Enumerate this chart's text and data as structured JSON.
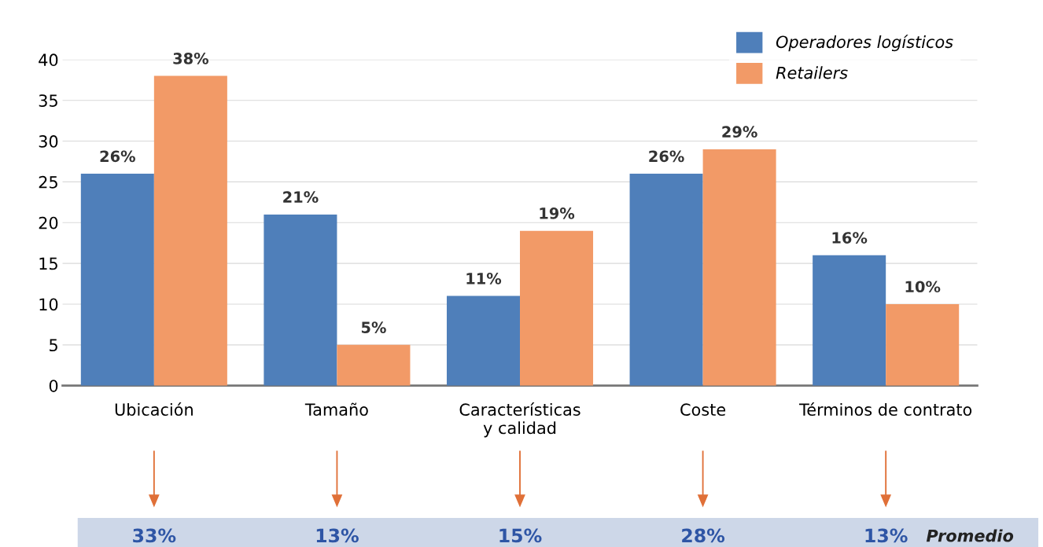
{
  "chart_data": {
    "type": "bar",
    "categories": [
      "Ubicación",
      "Tamaño",
      "Características\ny calidad",
      "Coste",
      "Términos de contrato"
    ],
    "series": [
      {
        "name": "Operadores logísticos",
        "color": "#4f7fba",
        "values": [
          26,
          21,
          11,
          26,
          16
        ],
        "value_labels": [
          "26%",
          "21%",
          "11%",
          "26%",
          "16%"
        ]
      },
      {
        "name": "Retailers",
        "color": "#f29a67",
        "values": [
          38,
          5,
          19,
          29,
          10
        ],
        "value_labels": [
          "38%",
          "5%",
          "19%",
          "29%",
          "10%"
        ]
      }
    ],
    "ylim": [
      0,
      40
    ],
    "yticks": [
      0,
      5,
      10,
      15,
      20,
      25,
      30,
      35,
      40
    ],
    "grid": "y",
    "legend": "top right",
    "annotations": [
      "33%",
      "13%",
      "15%",
      "28%",
      "13%",
      "Promedio"
    ]
  }
}
